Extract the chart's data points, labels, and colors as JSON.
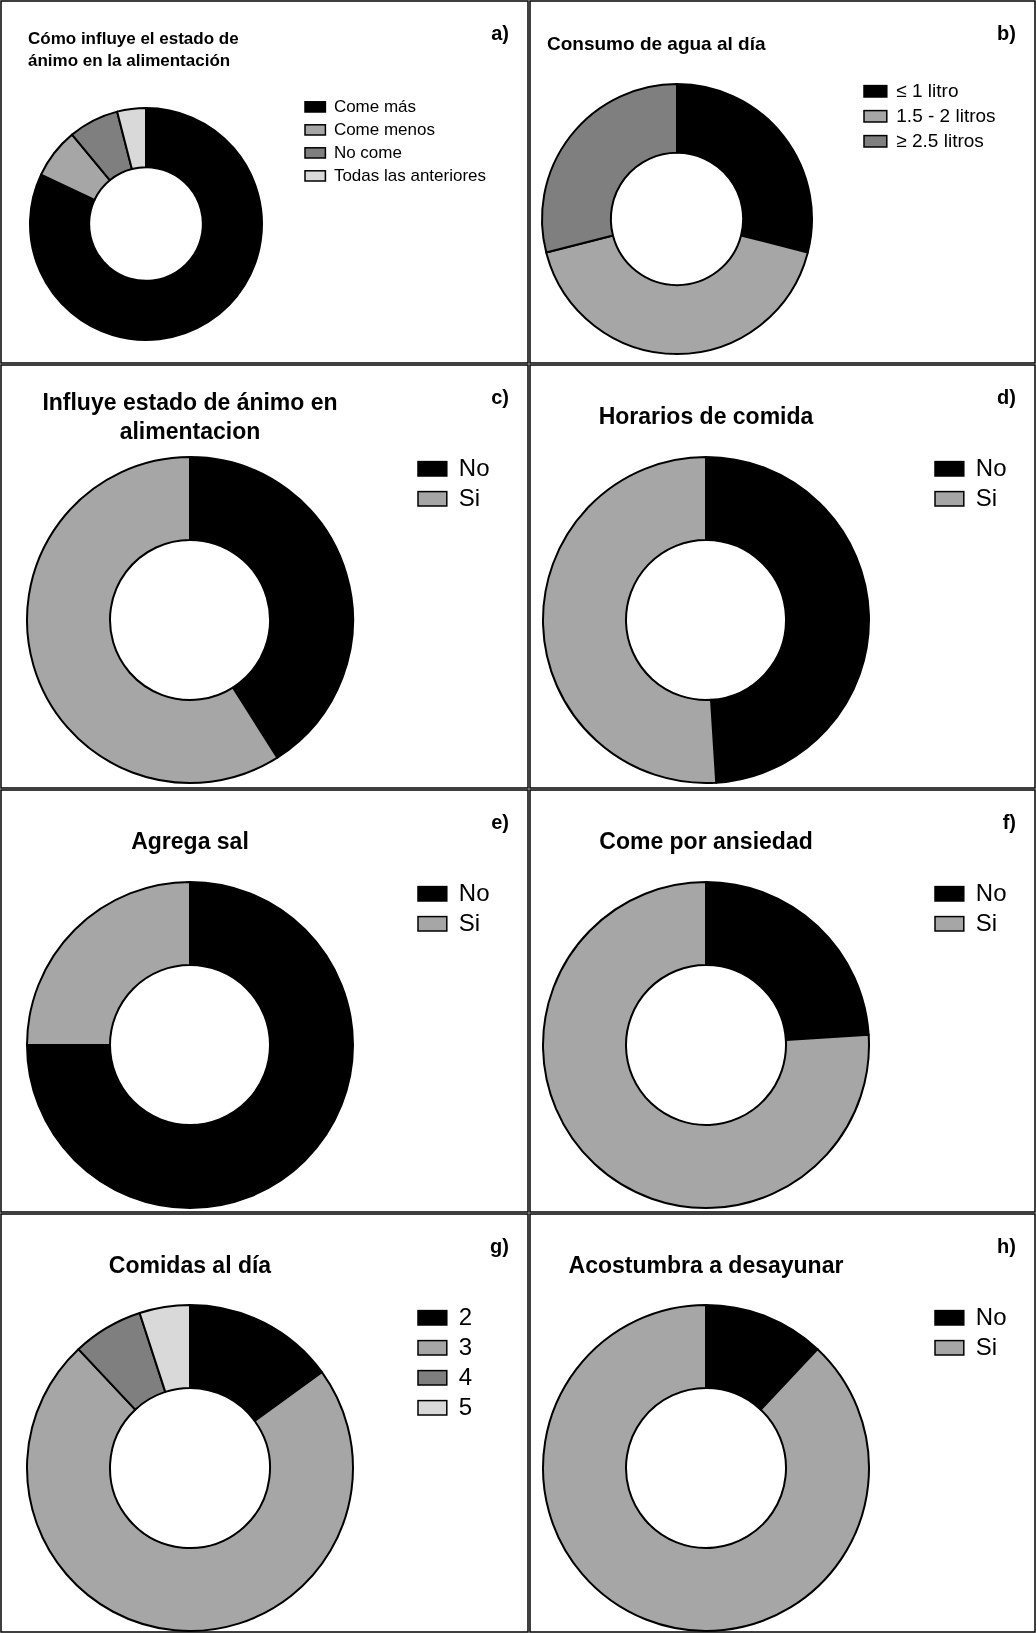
{
  "chart_data": [
    {
      "type": "donut",
      "title": "Cómo influye el estado de ánimo en la alimentación",
      "categories": [
        "Come más",
        "Come menos",
        "No come",
        "Todas las anteriores"
      ],
      "values": [
        82,
        7,
        7,
        4
      ],
      "colors": [
        "#000000",
        "#a6a6a6",
        "#7f7f7f",
        "#d9d9d9"
      ],
      "legend": "top right",
      "annotations": [
        "a)"
      ]
    },
    {
      "type": "donut",
      "title": "Consumo de agua al día",
      "categories": [
        "≤ 1 litro",
        "1.5 - 2 litros",
        "≥ 2.5 litros"
      ],
      "values": [
        29,
        42,
        29
      ],
      "colors": [
        "#000000",
        "#a6a6a6",
        "#7f7f7f"
      ],
      "legend": "top right",
      "annotations": [
        "b)"
      ]
    },
    {
      "type": "donut",
      "title": "Influye estado de ánimo en alimentacion",
      "categories": [
        "No",
        "Si"
      ],
      "values": [
        41,
        59
      ],
      "colors": [
        "#000000",
        "#a6a6a6"
      ],
      "legend": "right",
      "annotations": [
        "c)"
      ]
    },
    {
      "type": "donut",
      "title": "Horarios de comida",
      "categories": [
        "No",
        "Si"
      ],
      "values": [
        49,
        51
      ],
      "colors": [
        "#000000",
        "#a6a6a6"
      ],
      "legend": "right",
      "annotations": [
        "d)"
      ]
    },
    {
      "type": "donut",
      "title": "Agrega sal",
      "categories": [
        "No",
        "Si"
      ],
      "values": [
        75,
        25
      ],
      "colors": [
        "#000000",
        "#a6a6a6"
      ],
      "legend": "right",
      "annotations": [
        "e)"
      ]
    },
    {
      "type": "donut",
      "title": "Come por ansiedad",
      "categories": [
        "No",
        "Si"
      ],
      "values": [
        24,
        76
      ],
      "colors": [
        "#000000",
        "#a6a6a6"
      ],
      "legend": "right",
      "annotations": [
        "f)"
      ]
    },
    {
      "type": "donut",
      "title": "Comidas al día",
      "categories": [
        "2",
        "3",
        "4",
        "5"
      ],
      "values": [
        15,
        73,
        7,
        5
      ],
      "colors": [
        "#000000",
        "#a6a6a6",
        "#7f7f7f",
        "#d9d9d9"
      ],
      "legend": "right",
      "annotations": [
        "g)"
      ]
    },
    {
      "type": "donut",
      "title": "Acostumbra a desayunar",
      "categories": [
        "No",
        "Si"
      ],
      "values": [
        12,
        88
      ],
      "colors": [
        "#000000",
        "#a6a6a6"
      ],
      "legend": "right",
      "annotations": [
        "h)"
      ]
    }
  ]
}
